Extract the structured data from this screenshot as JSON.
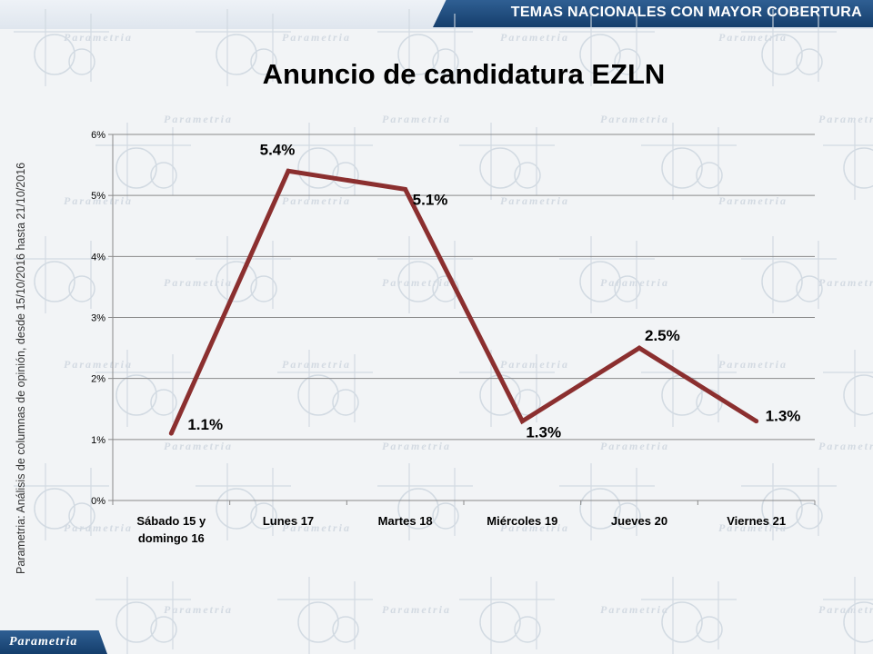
{
  "header": {
    "title": "TEMAS NACIONALES CON MAYOR COBERTURA"
  },
  "side_note": "Parametria: Análisis de columnas de opinión, desde 15/10/2016 hasta  21/10/2016",
  "footer": {
    "logo_text": "Parametria"
  },
  "watermark": {
    "word": "Parametria"
  },
  "colors": {
    "line": "#8b2f2f",
    "header": "#1f4e80",
    "grid": "#808080"
  },
  "chart_data": {
    "type": "line",
    "title": "Anuncio de candidatura EZLN",
    "categories": [
      [
        "Sábado 15 y",
        "domingo 16"
      ],
      [
        "Lunes 17"
      ],
      [
        "Martes 18"
      ],
      [
        "Miércoles 19"
      ],
      [
        "Jueves 20"
      ],
      [
        "Viernes 21"
      ]
    ],
    "values": [
      1.1,
      5.4,
      5.1,
      1.3,
      2.5,
      1.3
    ],
    "data_labels": [
      "1.1%",
      "5.4%",
      "5.1%",
      "1.3%",
      "2.5%",
      "1.3%"
    ],
    "yticks": [
      "0%",
      "1%",
      "2%",
      "3%",
      "4%",
      "5%",
      "6%"
    ],
    "ylim": [
      0,
      6
    ],
    "grid": true,
    "legend": "none"
  }
}
